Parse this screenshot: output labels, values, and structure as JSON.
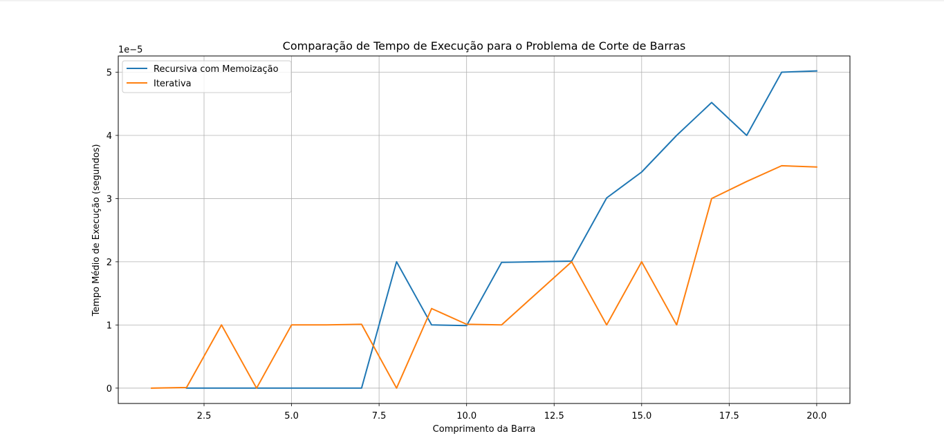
{
  "chart_data": {
    "type": "line",
    "title": "Comparação de Tempo de Execução para o Problema de Corte de Barras",
    "xlabel": "Comprimento da Barra",
    "ylabel": "Tempo Médio de Execução (segundos)",
    "y_offset_label": "1e−5",
    "xlim": [
      0.05,
      20.95
    ],
    "ylim": [
      -2.427e-06,
      5.2572e-05
    ],
    "x_ticks": [
      2.5,
      5.0,
      7.5,
      10.0,
      12.5,
      15.0,
      17.5,
      20.0
    ],
    "x_tick_labels": [
      "2.5",
      "5.0",
      "7.5",
      "10.0",
      "12.5",
      "15.0",
      "17.5",
      "20.0"
    ],
    "y_ticks": [
      0,
      1e-05,
      2e-05,
      3e-05,
      4e-05,
      5e-05
    ],
    "y_tick_labels": [
      "0",
      "1",
      "2",
      "3",
      "4",
      "5"
    ],
    "grid": true,
    "legend_position": "top-left",
    "series": [
      {
        "name": "Recursiva com Memoização",
        "color": "#1f77b4",
        "x": [
          2,
          3,
          4,
          5,
          6,
          7,
          8,
          9,
          10,
          11,
          12,
          13,
          14,
          15,
          16,
          17,
          18,
          19,
          20
        ],
        "values": [
          0,
          0,
          0,
          0,
          0,
          0,
          2e-05,
          1e-05,
          9.9e-06,
          1.99e-05,
          2e-05,
          2.01e-05,
          3.01e-05,
          3.42e-05,
          4e-05,
          4.52e-05,
          4e-05,
          5e-05,
          5.02e-05
        ]
      },
      {
        "name": "Iterativa",
        "color": "#ff7f0e",
        "x": [
          1,
          2,
          3,
          4,
          5,
          6,
          7,
          8,
          9,
          10,
          11,
          12,
          13,
          14,
          15,
          16,
          17,
          18,
          19,
          20
        ],
        "values": [
          0,
          1e-07,
          1e-05,
          0,
          1e-05,
          1e-05,
          1.01e-05,
          0,
          1.26e-05,
          1.01e-05,
          1e-05,
          1.5e-05,
          2e-05,
          1e-05,
          2e-05,
          1e-05,
          3e-05,
          3.27e-05,
          3.52e-05,
          3.5e-05
        ]
      }
    ]
  }
}
